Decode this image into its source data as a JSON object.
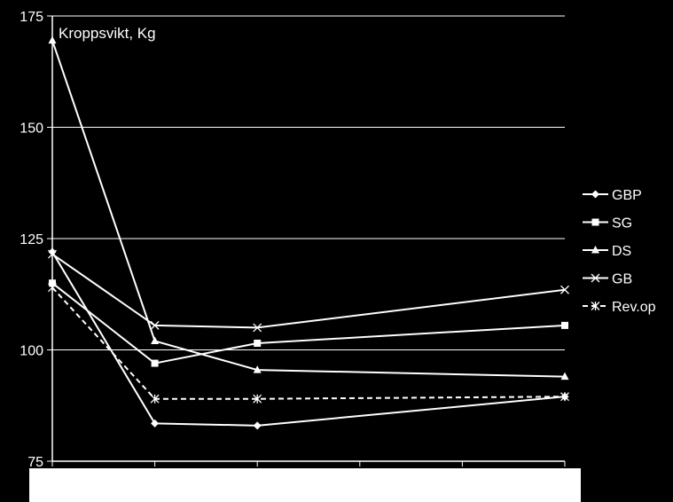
{
  "chart_data": {
    "type": "line",
    "ylabel": "Kroppsvikt, Kg",
    "ylim": [
      75,
      175
    ],
    "yticks": [
      "175",
      "150",
      "125",
      "100",
      "75"
    ],
    "y_tick_values": [
      175,
      150,
      125,
      100,
      75
    ],
    "x_count": 6,
    "grid": true,
    "legend_position": "right",
    "series": [
      {
        "name": "GBP",
        "marker": "diamond",
        "dashed": false,
        "points": [
          [
            0,
            122
          ],
          [
            1,
            83.5
          ],
          [
            2,
            83
          ],
          [
            5,
            89.5
          ]
        ]
      },
      {
        "name": "SG",
        "marker": "square",
        "dashed": false,
        "points": [
          [
            0,
            115
          ],
          [
            1,
            97
          ],
          [
            2,
            101.5
          ],
          [
            5,
            105.5
          ]
        ]
      },
      {
        "name": "DS",
        "marker": "triangle",
        "dashed": false,
        "points": [
          [
            0,
            169.5
          ],
          [
            1,
            102
          ],
          [
            2,
            95.5
          ],
          [
            5,
            94
          ]
        ]
      },
      {
        "name": "GB",
        "marker": "x",
        "dashed": false,
        "points": [
          [
            0,
            121.5
          ],
          [
            1,
            105.5
          ],
          [
            2,
            105
          ],
          [
            5,
            113.5
          ]
        ]
      },
      {
        "name": "Rev.op",
        "marker": "star",
        "dashed": true,
        "points": [
          [
            0,
            114
          ],
          [
            1,
            89
          ],
          [
            2,
            89
          ],
          [
            5,
            89.5
          ]
        ]
      }
    ]
  }
}
